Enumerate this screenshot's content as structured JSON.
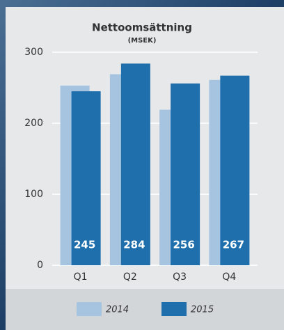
{
  "chart_data": {
    "type": "bar",
    "title": "Nettoomsättning",
    "subtitle": "(MSEK)",
    "categories": [
      "Q1",
      "Q2",
      "Q3",
      "Q4"
    ],
    "series": [
      {
        "name": "2014",
        "color": "#a6c4df",
        "values": [
          253,
          269,
          219,
          261
        ]
      },
      {
        "name": "2015",
        "color": "#1f6fad",
        "values": [
          245,
          284,
          256,
          267
        ]
      }
    ],
    "ylim": [
      0,
      300
    ],
    "yticks": [
      0,
      100,
      200,
      300
    ],
    "grid": true
  }
}
